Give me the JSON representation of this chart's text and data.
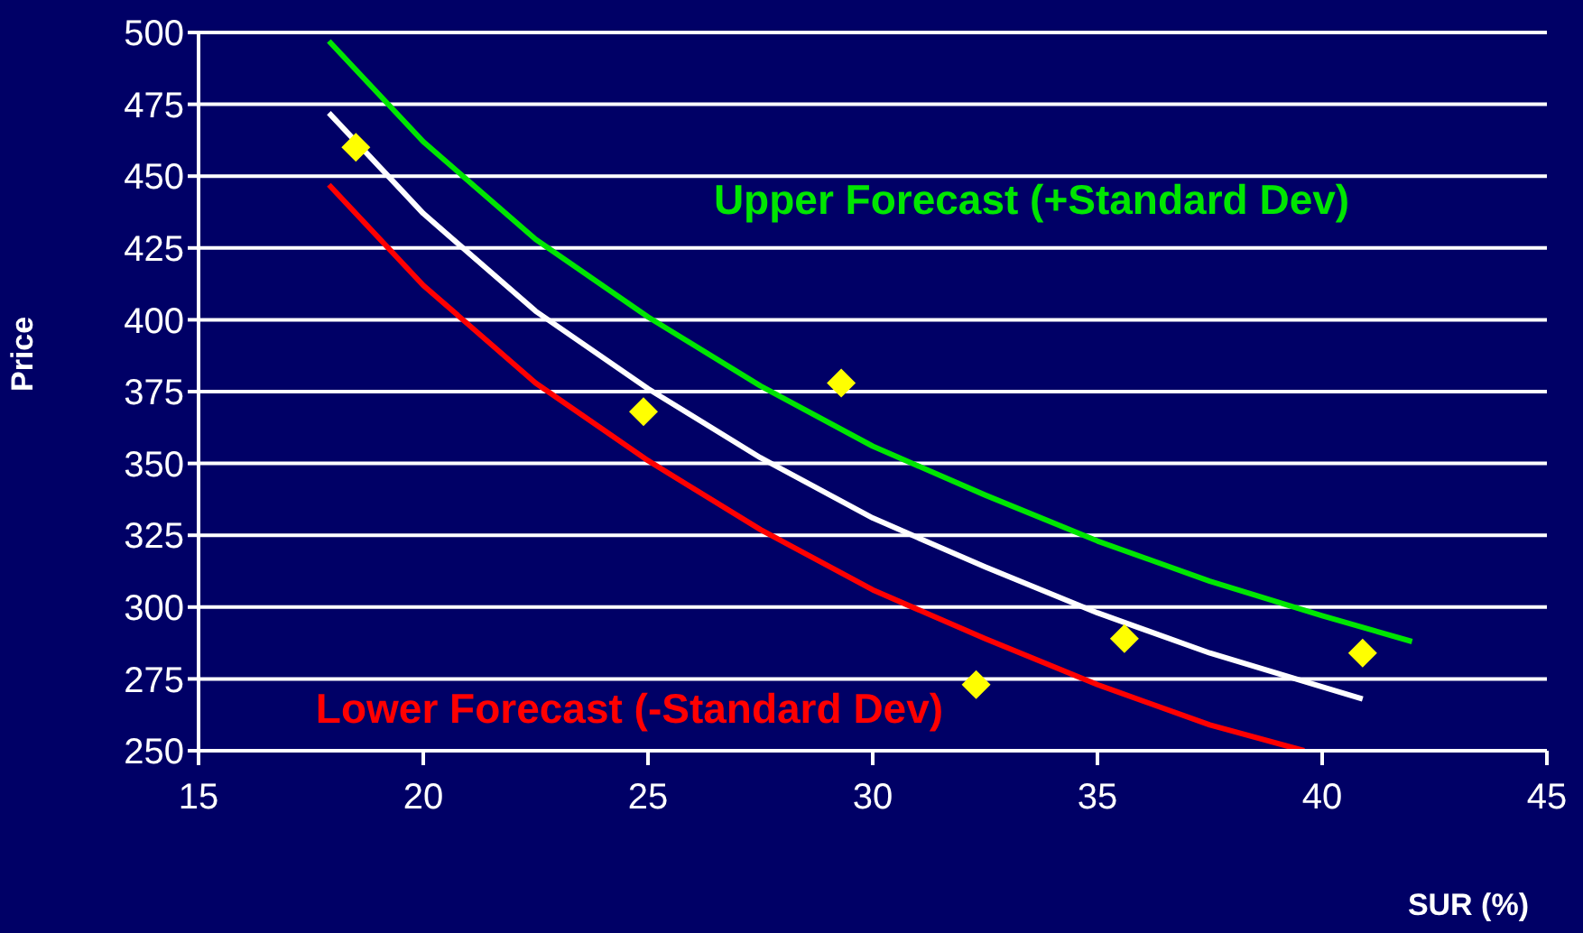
{
  "chart_data": {
    "type": "line",
    "xlabel": "SUR (%)",
    "ylabel": "Price",
    "xlim": [
      15,
      45
    ],
    "xticks": [
      15,
      20,
      25,
      30,
      35,
      40,
      45
    ],
    "ylim": [
      250,
      500
    ],
    "yticks": [
      250,
      275,
      300,
      325,
      350,
      375,
      400,
      425,
      450,
      475,
      500
    ],
    "grid": "y",
    "legend": false,
    "line_style": "solid",
    "series": [
      {
        "name": "Upper Forecast (+Standard Dev)",
        "color": "#00e600",
        "marker": "none",
        "x": [
          17.9,
          20,
          22.5,
          25,
          27.5,
          30,
          32.5,
          35,
          37.5,
          40,
          42
        ],
        "values": [
          497,
          462,
          428,
          401,
          377,
          356,
          339,
          323,
          309,
          297,
          288
        ]
      },
      {
        "color": "#ffffff",
        "marker": "none",
        "x": [
          17.9,
          20,
          22.5,
          25,
          27.5,
          30,
          32.5,
          35,
          37.5,
          40.9
        ],
        "values": [
          472,
          437,
          403,
          376,
          352,
          331,
          314,
          298,
          284,
          268
        ]
      },
      {
        "name": "Lower Forecast (-Standard Dev)",
        "color": "#ff0000",
        "marker": "none",
        "x": [
          17.9,
          20,
          22.5,
          25,
          27.5,
          30,
          32.5,
          35,
          37.5,
          39.6
        ],
        "values": [
          447,
          412,
          378,
          351,
          327,
          306,
          289,
          273,
          259,
          250
        ]
      },
      {
        "type": "scatter",
        "color": "#ffff00",
        "marker": "diamond",
        "x": [
          18.5,
          24.9,
          29.3,
          32.3,
          35.6,
          40.9
        ],
        "values": [
          460,
          368,
          378,
          273,
          289,
          284
        ]
      }
    ]
  }
}
